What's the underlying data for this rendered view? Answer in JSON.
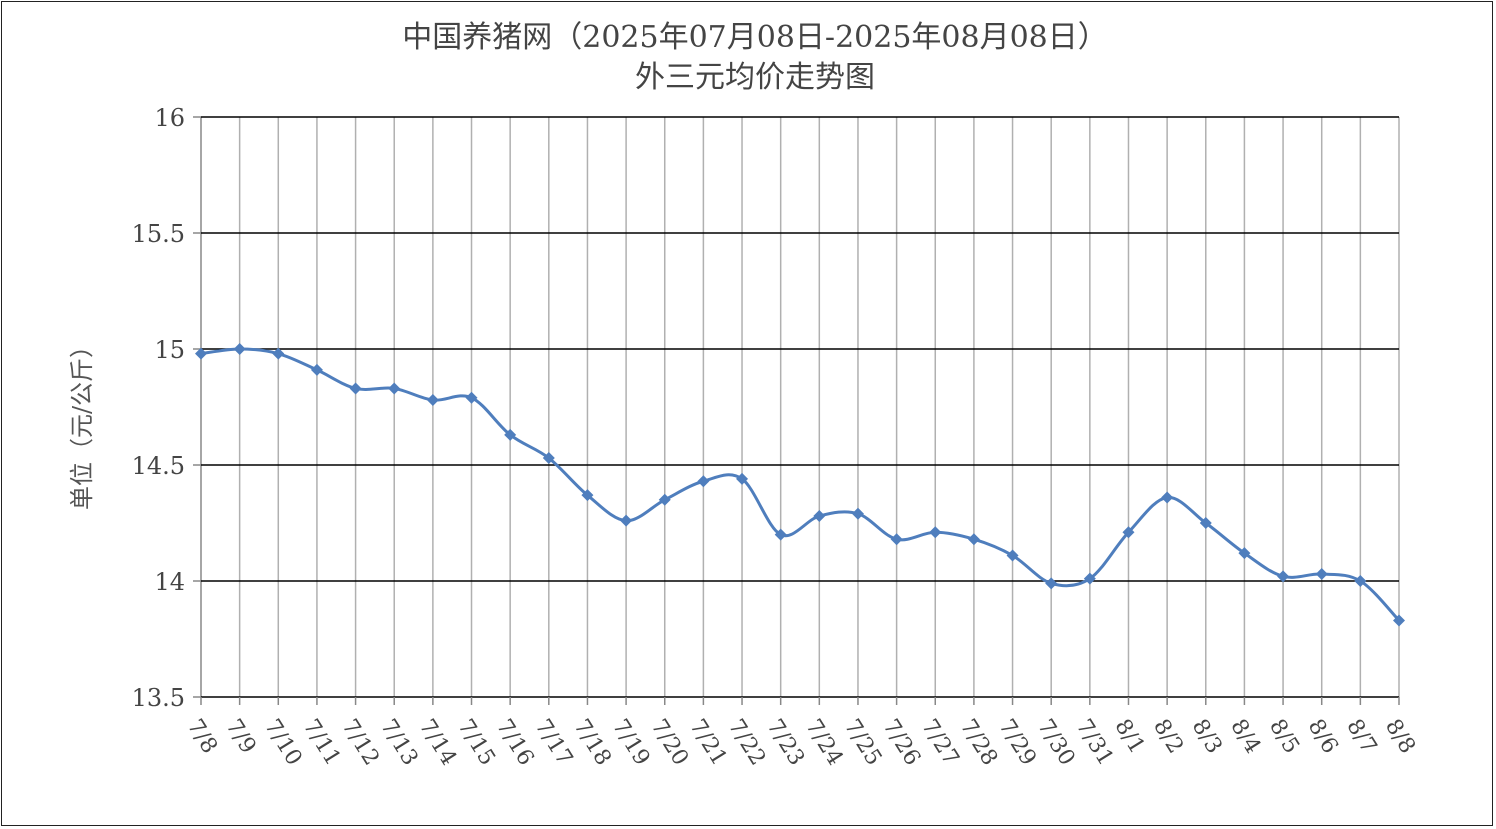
{
  "chart_data": {
    "type": "line",
    "title": "中国养猪网（2025年07月08日-2025年08月08日）",
    "subtitle": "外三元均价走势图",
    "xlabel": "",
    "ylabel": "单位（元/公斤）",
    "ylim": [
      13.5,
      16
    ],
    "yticks": [
      "13.5",
      "14",
      "14.5",
      "15",
      "15.5",
      "16"
    ],
    "grid": "on",
    "categories": [
      "7/8",
      "7/9",
      "7/10",
      "7/11",
      "7/12",
      "7/13",
      "7/14",
      "7/15",
      "7/16",
      "7/17",
      "7/18",
      "7/19",
      "7/20",
      "7/21",
      "7/22",
      "7/23",
      "7/24",
      "7/25",
      "7/26",
      "7/27",
      "7/28",
      "7/29",
      "7/30",
      "7/31",
      "8/1",
      "8/2",
      "8/3",
      "8/4",
      "8/5",
      "8/6",
      "8/7",
      "8/8"
    ],
    "series": [
      {
        "values": [
          14.98,
          15.0,
          14.98,
          14.91,
          14.83,
          14.83,
          14.78,
          14.79,
          14.63,
          14.53,
          14.37,
          14.26,
          14.35,
          14.43,
          14.44,
          14.2,
          14.28,
          14.29,
          14.18,
          14.21,
          14.18,
          14.11,
          13.99,
          14.01,
          14.21,
          14.36,
          14.25,
          14.12,
          14.02,
          14.03,
          14.0,
          13.83
        ],
        "color": "#4f7ebd"
      }
    ]
  }
}
